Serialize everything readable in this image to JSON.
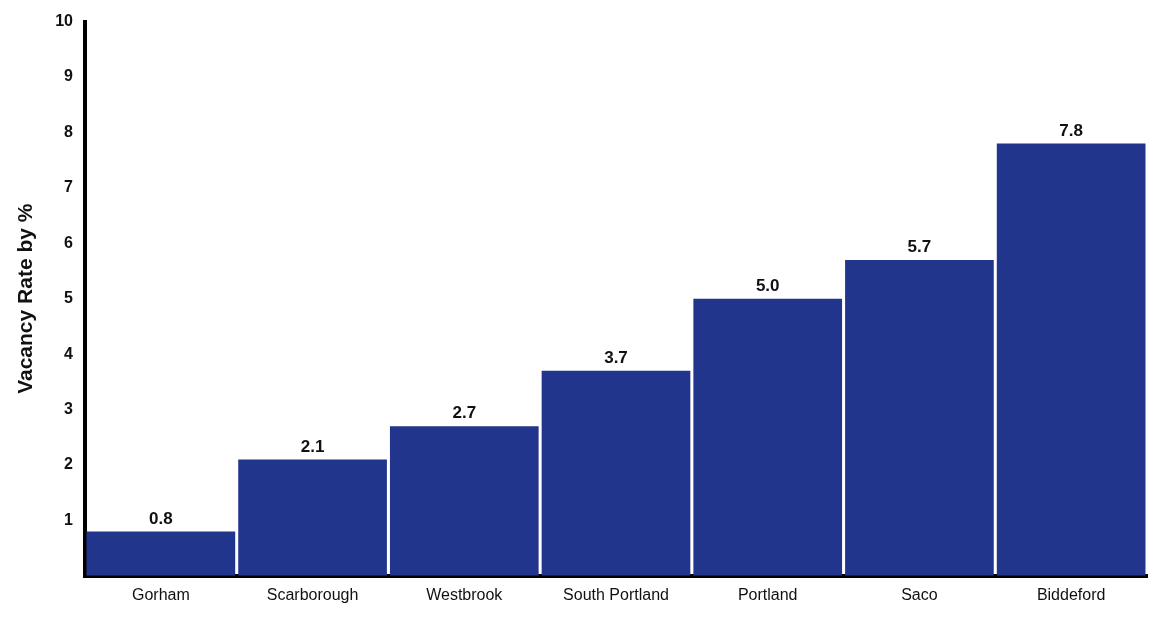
{
  "chart_data": {
    "type": "bar",
    "ylabel": "Vacancy Rate by %",
    "categories": [
      "Gorham",
      "Scarborough",
      "Westbrook",
      "South Portland",
      "Portland",
      "Saco",
      "Biddeford"
    ],
    "values": [
      0.8,
      2.1,
      2.7,
      3.7,
      5.0,
      5.7,
      7.8
    ],
    "value_labels": [
      "0.8",
      "2.1",
      "2.7",
      "3.7",
      "5.0",
      "5.7",
      "7.8"
    ],
    "color": "#22358c",
    "ylim": [
      0,
      10
    ],
    "yticks": [
      1,
      2,
      3,
      4,
      5,
      6,
      7,
      8,
      9,
      10
    ],
    "grid": false,
    "legend": false
  }
}
